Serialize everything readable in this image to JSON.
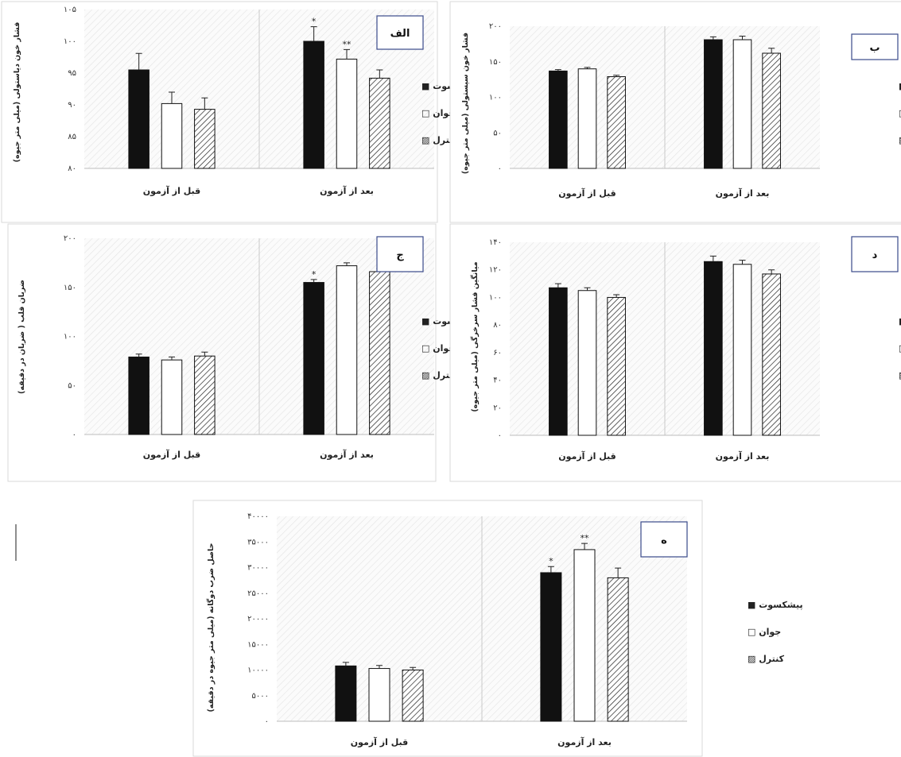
{
  "legend": {
    "series": [
      {
        "label": "پیشکسوت ■",
        "key": "veteran"
      },
      {
        "label": "جوان □",
        "key": "young"
      },
      {
        "label": "کنترل ▨",
        "key": "control"
      }
    ]
  },
  "chart_data": [
    {
      "type": "bar",
      "panel_label": "الف",
      "ylabel": "فشار خون دیاستولی (میلی متر جیوه)",
      "categories": [
        "قبل از آزمون",
        "بعد از آزمون"
      ],
      "yticks": [
        "۸۰",
        "۸۵",
        "۹۰",
        "۹۵",
        "۱۰۰",
        "۱۰۵"
      ],
      "ylim": [
        80,
        105
      ],
      "series": [
        {
          "name": "پیشکسوت",
          "values": [
            95.5,
            100
          ],
          "errors": [
            2.6,
            2.3
          ]
        },
        {
          "name": "جوان",
          "values": [
            90.2,
            97.2
          ],
          "errors": [
            1.8,
            1.5
          ]
        },
        {
          "name": "کنترل",
          "values": [
            89.3,
            94.2
          ],
          "errors": [
            1.8,
            1.3
          ]
        }
      ],
      "significance": [
        {
          "category": 1,
          "series": 0,
          "mark": "*"
        },
        {
          "category": 1,
          "series": 1,
          "mark": "**"
        }
      ]
    },
    {
      "type": "bar",
      "panel_label": "ب",
      "ylabel": "فشار خون سیستولی (میلی متر جیوه)",
      "categories": [
        "قبل از آزمون",
        "بعد از آزمون"
      ],
      "yticks": [
        "۰",
        "۵۰",
        "۱۰۰",
        "۱۵۰",
        "۲۰۰"
      ],
      "ylim": [
        0,
        200
      ],
      "series": [
        {
          "name": "پیشکسوت",
          "values": [
            137,
            181
          ],
          "errors": [
            2,
            4
          ]
        },
        {
          "name": "جوان",
          "values": [
            140,
            181
          ],
          "errors": [
            2,
            5
          ]
        },
        {
          "name": "کنترل",
          "values": [
            129,
            162
          ],
          "errors": [
            2,
            7
          ]
        }
      ]
    },
    {
      "type": "bar",
      "panel_label": "ج",
      "ylabel": "ضربان قلب ( ضربان در دقیقه)",
      "categories": [
        "قبل از آزمون",
        "بعد از آزمون"
      ],
      "yticks": [
        "۰",
        "۵۰",
        "۱۰۰",
        "۱۵۰",
        "۲۰۰"
      ],
      "ylim": [
        0,
        200
      ],
      "series": [
        {
          "name": "پیشکسوت",
          "values": [
            79,
            155
          ],
          "errors": [
            3,
            3
          ]
        },
        {
          "name": "جوان",
          "values": [
            76,
            172
          ],
          "errors": [
            3,
            3
          ]
        },
        {
          "name": "کنترل",
          "values": [
            80,
            166
          ],
          "errors": [
            4,
            3
          ]
        }
      ],
      "significance": [
        {
          "category": 1,
          "series": 0,
          "mark": "*"
        }
      ]
    },
    {
      "type": "bar",
      "panel_label": "د",
      "ylabel": "میانگین فشار سرخرگی (میلی متر جیوه)",
      "categories": [
        "قبل از آزمون",
        "بعد از آزمون"
      ],
      "yticks": [
        "۰",
        "۲۰",
        "۴۰",
        "۶۰",
        "۸۰",
        "۱۰۰",
        "۱۲۰",
        "۱۴۰"
      ],
      "ylim": [
        0,
        140
      ],
      "series": [
        {
          "name": "پیشکسوت",
          "values": [
            107,
            126
          ],
          "errors": [
            3,
            4
          ]
        },
        {
          "name": "جوان",
          "values": [
            105,
            124
          ],
          "errors": [
            2,
            3
          ]
        },
        {
          "name": "کنترل",
          "values": [
            100,
            117
          ],
          "errors": [
            2,
            3
          ]
        }
      ]
    },
    {
      "type": "bar",
      "panel_label": "ه",
      "ylabel": "حاصل ضرب دوگانه (میلی متر جیوه در دقیقه)",
      "categories": [
        "قبل از آزمون",
        "بعد از آزمون"
      ],
      "yticks": [
        "۰",
        "۵۰۰۰",
        "۱۰۰۰۰",
        "۱۵۰۰۰",
        "۲۰۰۰۰",
        "۲۵۰۰۰",
        "۳۰۰۰۰",
        "۳۵۰۰۰",
        "۴۰۰۰۰"
      ],
      "ylim": [
        0,
        40000
      ],
      "series": [
        {
          "name": "پیشکسوت",
          "values": [
            10800,
            29000
          ],
          "errors": [
            700,
            1200
          ]
        },
        {
          "name": "جوان",
          "values": [
            10300,
            33500
          ],
          "errors": [
            600,
            1200
          ]
        },
        {
          "name": "کنترل",
          "values": [
            10000,
            28000
          ],
          "errors": [
            500,
            1900
          ]
        }
      ],
      "significance": [
        {
          "category": 1,
          "series": 0,
          "mark": "*"
        },
        {
          "category": 1,
          "series": 1,
          "mark": "**"
        }
      ]
    }
  ]
}
